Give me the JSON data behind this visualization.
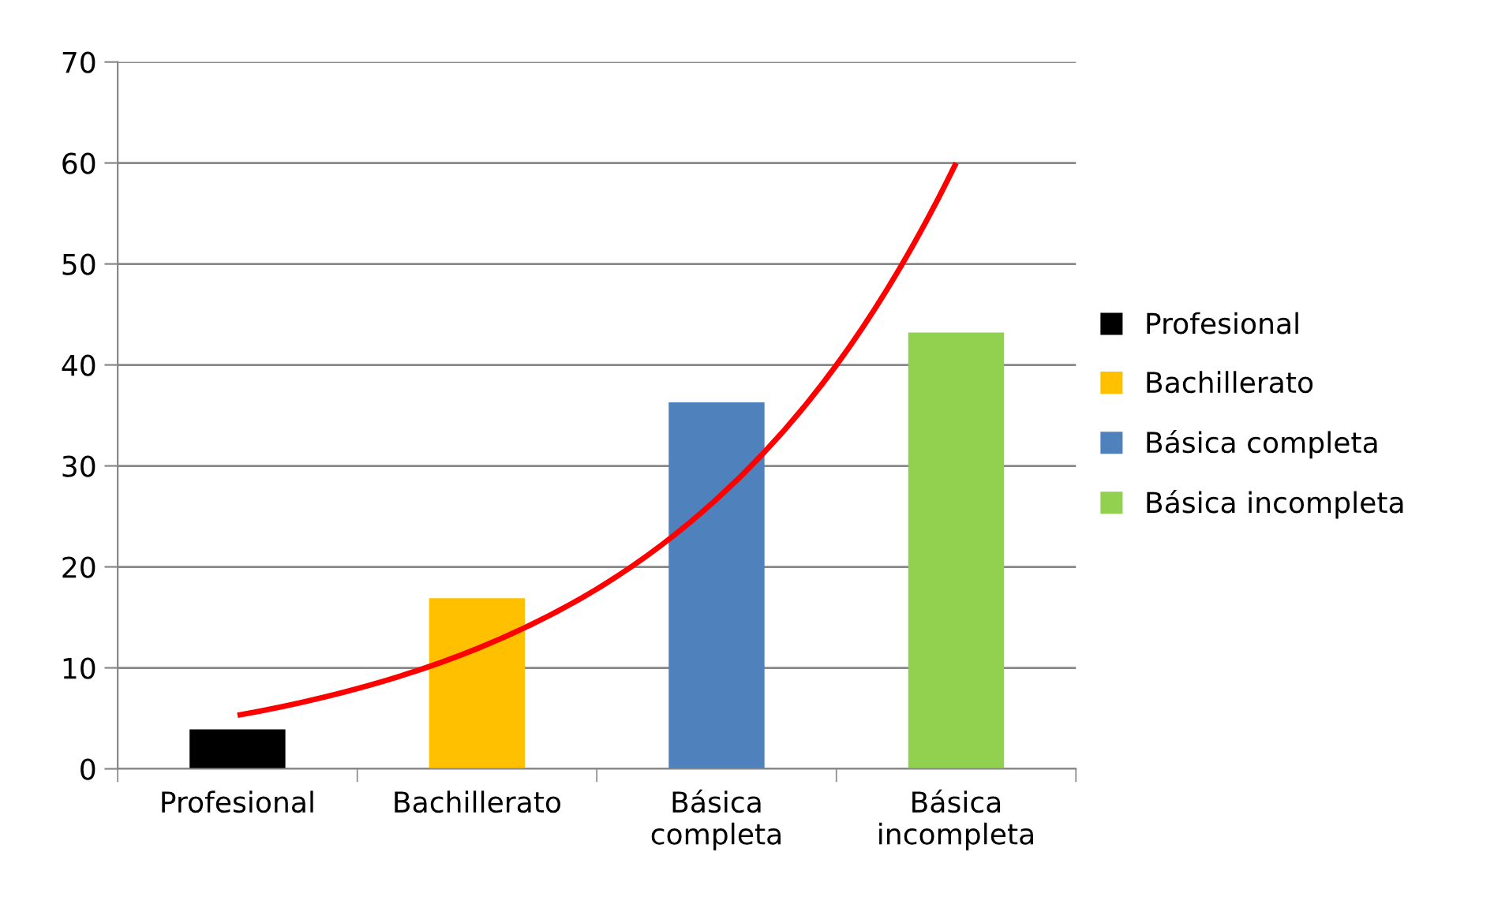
{
  "chart_data": {
    "type": "bar",
    "categories": [
      "Profesional",
      "Bachillerato",
      "Básica\ncompleta",
      "Básica\nincompleta"
    ],
    "series": [
      {
        "name": "Profesional",
        "color": "#000000",
        "values": [
          3.9,
          null,
          null,
          null
        ]
      },
      {
        "name": "Bachillerato",
        "color": "#ffc000",
        "values": [
          null,
          16.9,
          null,
          null
        ]
      },
      {
        "name": "Básica completa",
        "color": "#4f81bd",
        "values": [
          null,
          null,
          36.3,
          null
        ]
      },
      {
        "name": "Básica incompleta",
        "color": "#92d050",
        "values": [
          null,
          null,
          null,
          43.2
        ]
      },
      {
        "type": "line",
        "color": "#ff0000",
        "values": [
          5.3,
          11.9,
          26.7,
          60.0
        ]
      }
    ],
    "ylim": [
      0,
      70
    ],
    "yticks": [
      0,
      10,
      20,
      30,
      40,
      50,
      60,
      70
    ],
    "grid": "y",
    "legend": "right"
  }
}
